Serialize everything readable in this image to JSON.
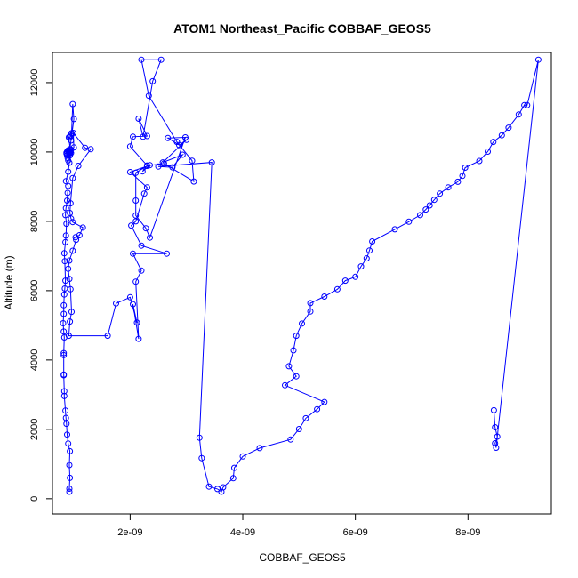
{
  "chart_data": {
    "type": "line",
    "title": "ATOM1 Northeast_Pacific COBBAF_GEOS5",
    "xlabel": "COBBAF_GEOS5",
    "ylabel": "Altitude (m)",
    "x_ticks": [
      "2e-09",
      "4e-09",
      "6e-09",
      "8e-09"
    ],
    "x_tick_values": [
      2e-09,
      4e-09,
      6e-09,
      8e-09
    ],
    "y_ticks": [
      "0",
      "2000",
      "4000",
      "6000",
      "8000",
      "10000",
      "12000"
    ],
    "y_tick_values": [
      0,
      2000,
      4000,
      6000,
      8000,
      10000,
      12000
    ],
    "xlim": [
      6.2e-10,
      9.48e-09
    ],
    "ylim": [
      -440,
      12870
    ],
    "grid": false,
    "marker": "open-circle",
    "series_color": "#0000ff",
    "series": [
      {
        "x": [
          9.2e-10,
          9.2e-10,
          9.3e-10,
          9.2e-10,
          9.3e-10,
          9e-10,
          8.8e-10,
          8.7e-10,
          8.6e-10,
          8.5e-10,
          8.3e-10,
          8.3e-10,
          8.2e-10,
          8.2e-10,
          8.2e-10,
          8.2e-10,
          8.3e-10,
          8.2e-10,
          8.1e-10,
          8.2e-10,
          8.2e-10,
          8.3e-10,
          8.4e-10,
          8.5e-10,
          8.4e-10,
          8.3e-10,
          8.5e-10,
          8.6e-10,
          8.7e-10,
          8.5e-10,
          8.6e-10,
          8.8e-10,
          8.9e-10,
          9e-10,
          8.6e-10,
          9e-10,
          9.2e-10,
          9.3e-10,
          9.2e-10,
          8.7e-10,
          8.8e-10,
          8.9e-10,
          9e-10,
          9.2e-10,
          9.3e-10,
          9.2e-10,
          9.1e-10,
          9.2e-10,
          9.5e-10,
          9.3e-10,
          9e-10,
          8.7e-10,
          8.8e-10,
          9e-10,
          9.2e-10,
          9.3e-10,
          9.4e-10,
          9.1e-10,
          9.3e-10,
          9.5e-10,
          9.6e-10,
          9.8e-10,
          1e-09,
          9.5e-10,
          9.3e-10,
          9.5e-10,
          1e-09,
          9.9e-10,
          1.2e-09,
          1.3e-09,
          1.08e-09,
          9.8e-10,
          9.4e-10,
          9.3e-10,
          9.5e-10,
          9.8e-10,
          1.16e-09,
          1.1e-09,
          1.03e-09,
          1.04e-09,
          9.8e-10,
          9.2e-10,
          9e-10,
          9.2e-10,
          9.4e-10,
          9.6e-10,
          9.3e-10,
          9.1e-10
        ],
        "y": [
          200,
          290,
          600,
          970,
          1370,
          1590,
          1850,
          2160,
          2330,
          2540,
          2960,
          3100,
          3560,
          3580,
          4140,
          4200,
          4650,
          4820,
          5060,
          5330,
          5580,
          5890,
          6060,
          6290,
          6850,
          7080,
          7400,
          7590,
          7930,
          8180,
          8380,
          8600,
          8820,
          9020,
          9160,
          9430,
          9690,
          9960,
          10040,
          9950,
          9900,
          9830,
          9760,
          9960,
          10000,
          10000,
          10050,
          9980,
          9970,
          9900,
          10020,
          9980,
          10010,
          10050,
          9970,
          10010,
          10000,
          10420,
          10430,
          10470,
          10540,
          11380,
          10950,
          10330,
          10080,
          10070,
          10130,
          10550,
          10120,
          10080,
          9600,
          9250,
          8520,
          8240,
          8080,
          7980,
          7820,
          7600,
          7540,
          7470,
          7150,
          6870,
          6630,
          6340,
          6040,
          5390,
          5110,
          4700
        ]
      },
      {
        "x": [
          1.6e-09,
          1.75e-09,
          2e-09,
          2.12e-09,
          2.05e-09,
          2.15e-09,
          2.1e-09,
          2.2e-09,
          2.05e-09,
          2.65e-09,
          2.2e-09,
          2.02e-09,
          2.1e-09,
          2.25e-09,
          2.3e-09,
          2e-09,
          2.35e-09,
          2.22e-09,
          2.3e-09,
          2e-09,
          2.05e-09,
          2.3e-09,
          2.15e-09,
          2.23e-09,
          2.4e-09,
          2.55e-09,
          2.2e-09,
          2.33e-09,
          2.83e-09,
          3.1e-09,
          3.13e-09,
          2.6e-09,
          2.3e-09,
          2.1e-09,
          2.1e-09,
          2.1e-09,
          2.28e-09,
          2.35e-09,
          2.98e-09,
          2.67e-09,
          2.87e-09,
          3e-09,
          2.58e-09,
          2.93e-09,
          2.75e-09,
          2.5e-09,
          3.45e-09
        ],
        "y": [
          4700,
          5630,
          5810,
          5080,
          5610,
          4610,
          6260,
          6580,
          7070,
          7070,
          7300,
          7880,
          8000,
          8800,
          8980,
          9420,
          9620,
          9440,
          9610,
          10160,
          10440,
          10460,
          10960,
          10440,
          12040,
          12660,
          12660,
          11620,
          10290,
          9750,
          9150,
          9670,
          9600,
          9400,
          8600,
          8170,
          7800,
          7530,
          10420,
          10400,
          10200,
          10350,
          9700,
          9920,
          9560,
          9580,
          9700
        ]
      },
      {
        "x": [
          3.23e-09,
          3.27e-09,
          3.4e-09,
          3.55e-09,
          3.62e-09,
          3.65e-09,
          3.83e-09,
          3.85e-09,
          4e-09,
          4.3e-09,
          4.85e-09,
          5e-09,
          5.12e-09,
          5.32e-09,
          5.45e-09,
          4.75e-09,
          4.95e-09,
          4.82e-09,
          4.9e-09,
          4.95e-09,
          5.05e-09,
          5.2e-09,
          5.2e-09,
          5.45e-09,
          5.68e-09,
          5.82e-09,
          6e-09,
          6.1e-09,
          6.2e-09,
          6.25e-09,
          6.3e-09,
          6.7e-09,
          6.95e-09,
          7.15e-09,
          7.25e-09,
          7.32e-09,
          7.4e-09,
          7.5e-09,
          7.65e-09,
          7.82e-09,
          7.9e-09,
          7.95e-09,
          8.2e-09,
          8.35e-09,
          8.45e-09,
          8.6e-09,
          8.72e-09,
          8.9e-09,
          9e-09,
          9.05e-09,
          9.25e-09,
          8.5e-09,
          8.48e-09,
          8.52e-09,
          8.48e-09,
          8.46e-09
        ],
        "y": [
          1760,
          1170,
          350,
          280,
          200,
          330,
          590,
          890,
          1220,
          1460,
          1710,
          2010,
          2320,
          2580,
          2790,
          3270,
          3530,
          3820,
          4280,
          4700,
          5050,
          5400,
          5640,
          5830,
          6040,
          6290,
          6400,
          6700,
          6930,
          7160,
          7420,
          7770,
          7990,
          8180,
          8340,
          8460,
          8620,
          8800,
          8980,
          9140,
          9310,
          9550,
          9740,
          10010,
          10290,
          10480,
          10700,
          11080,
          11350,
          11350,
          12660,
          1470,
          1600,
          1790,
          2060,
          2550
        ]
      }
    ]
  }
}
